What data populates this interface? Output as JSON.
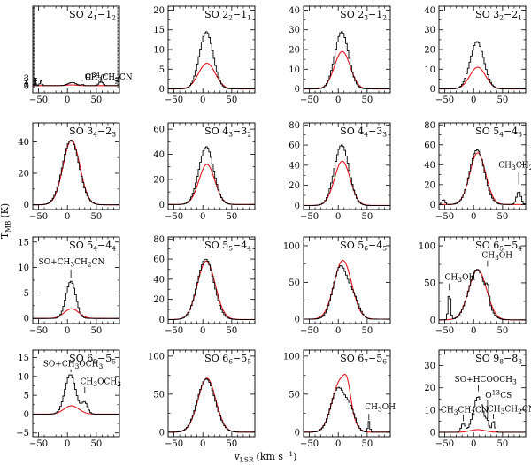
{
  "figure": {
    "ylabel": "T",
    "ylabel_sub": "MB",
    "ylabel_unit": "(K)",
    "xlabel": "v",
    "xlabel_sub": "LSR",
    "xlabel_unit": "(km s",
    "xlabel_unit_sup": "−1",
    "xlabel_unit_end": ")"
  },
  "colors": {
    "observed": "#000000",
    "model": "#e8141e"
  },
  "chart_data": [
    {
      "type": "line",
      "title": "SO 2₁−1₂",
      "title_main": "SO 2",
      "title_sub1": "1",
      "title_dash": "−1",
      "title_sub2": "2",
      "xlim": [
        -60,
        90
      ],
      "ylim": [
        -3,
        33
      ],
      "xticks": [
        -50,
        0,
        50
      ],
      "yticks": [
        0,
        1,
        2,
        3
      ],
      "ytick_labels": [
        "0",
        "1",
        "2",
        "3"
      ],
      "observed": {
        "base": 0,
        "components": [
          [
            8,
            16,
            1.3
          ],
          [
            -46,
            4,
            1.9
          ],
          [
            -56,
            3,
            3.0
          ],
          [
            58,
            8,
            1.7
          ],
          [
            26,
            4,
            0.5
          ]
        ]
      },
      "model": {
        "base": 0,
        "components": [
          [
            7,
            22,
            0.3
          ]
        ]
      },
      "annotations": [
        {
          "text": "CH₃CH₂CN",
          "main": "CH",
          "s1": "3",
          "m2": "CH",
          "s2": "2",
          "m3": "CN",
          "xlab": 30,
          "ylab": 2.55,
          "xline": 58,
          "y0": 2.4,
          "y1": 2.05
        },
        {
          "text": "H₂C³⁴S",
          "main": "H",
          "s1": "2",
          "m2": "C",
          "sup": "34",
          "m3": "S",
          "xlab": 30,
          "ylab": 2.2,
          "xline": 26,
          "y0": 2.05,
          "y1": 1.85
        }
      ]
    },
    {
      "type": "line",
      "title": "SO 2₂−1₁",
      "title_main": "SO 2",
      "title_sub1": "2",
      "title_dash": "−1",
      "title_sub2": "1",
      "xlim": [
        -60,
        90
      ],
      "ylim": [
        -1,
        21
      ],
      "xticks": [
        -50,
        0,
        50
      ],
      "yticks": [
        0,
        5,
        10,
        15,
        20
      ],
      "ytick_labels": [
        "0",
        "5",
        "10",
        "15",
        "20"
      ],
      "observed": {
        "base": 0,
        "components": [
          [
            6,
            28,
            14.5
          ]
        ]
      },
      "model": {
        "base": 0,
        "components": [
          [
            7,
            34,
            6.5
          ]
        ]
      },
      "annotations": []
    },
    {
      "type": "line",
      "title": "SO 2₃−1₂",
      "title_main": "SO 2",
      "title_sub1": "3",
      "title_dash": "−1",
      "title_sub2": "2",
      "xlim": [
        -60,
        90
      ],
      "ylim": [
        -2,
        42
      ],
      "xticks": [
        -50,
        0,
        50
      ],
      "yticks": [
        0,
        10,
        20,
        30,
        40
      ],
      "ytick_labels": [
        "0",
        "10",
        "20",
        "30",
        "40"
      ],
      "observed": {
        "base": 0,
        "components": [
          [
            6,
            28,
            29
          ]
        ]
      },
      "model": {
        "base": 0,
        "components": [
          [
            7,
            32,
            19
          ]
        ]
      },
      "annotations": []
    },
    {
      "type": "line",
      "title": "SO 3₂−2₁",
      "title_main": "SO 3",
      "title_sub1": "2",
      "title_dash": "−2",
      "title_sub2": "1",
      "xlim": [
        -60,
        90
      ],
      "ylim": [
        -2,
        42
      ],
      "xticks": [
        -50,
        0,
        50
      ],
      "yticks": [
        0,
        10,
        20,
        30,
        40
      ],
      "ytick_labels": [
        "0",
        "10",
        "20",
        "30",
        "40"
      ],
      "observed": {
        "base": 0,
        "components": [
          [
            6,
            28,
            24
          ]
        ]
      },
      "model": {
        "base": 0,
        "components": [
          [
            7,
            32,
            11
          ]
        ]
      },
      "annotations": []
    },
    {
      "type": "line",
      "title": "SO 3₄−2₃",
      "title_main": "SO 3",
      "title_sub1": "4",
      "title_dash": "−2",
      "title_sub2": "3",
      "xlim": [
        -60,
        90
      ],
      "ylim": [
        -3,
        52
      ],
      "xticks": [
        -50,
        0,
        50
      ],
      "yticks": [
        0,
        20,
        40
      ],
      "ytick_labels": [
        "0",
        "20",
        "40"
      ],
      "observed": {
        "base": 0,
        "components": [
          [
            6,
            34,
            41
          ]
        ]
      },
      "model": {
        "base": 0,
        "components": [
          [
            7,
            34,
            41
          ]
        ]
      },
      "annotations": []
    },
    {
      "type": "line",
      "title": "SO 4₃−3₂",
      "title_main": "SO 4",
      "title_sub1": "3",
      "title_dash": "−3",
      "title_sub2": "2",
      "xlim": [
        -60,
        90
      ],
      "ylim": [
        -4,
        65
      ],
      "xticks": [
        -50,
        0,
        50
      ],
      "yticks": [
        0,
        20,
        40,
        60
      ],
      "ytick_labels": [
        "0",
        "20",
        "40",
        "60"
      ],
      "observed": {
        "base": 0,
        "components": [
          [
            6,
            30,
            46
          ]
        ]
      },
      "model": {
        "base": 0,
        "components": [
          [
            7,
            32,
            32
          ]
        ]
      },
      "annotations": []
    },
    {
      "type": "line",
      "title": "SO 4₄−3₃",
      "title_main": "SO 4",
      "title_sub1": "4",
      "title_dash": "−3",
      "title_sub2": "3",
      "xlim": [
        -60,
        90
      ],
      "ylim": [
        -4,
        82
      ],
      "xticks": [
        -50,
        0,
        50
      ],
      "yticks": [
        0,
        20,
        40,
        60,
        80
      ],
      "ytick_labels": [
        "0",
        "20",
        "40",
        "60",
        "80"
      ],
      "observed": {
        "base": 0,
        "components": [
          [
            6,
            30,
            60
          ]
        ]
      },
      "model": {
        "base": 0,
        "components": [
          [
            7,
            32,
            44
          ]
        ]
      },
      "annotations": []
    },
    {
      "type": "line",
      "title": "SO 5₄−4₃",
      "title_main": "SO 5",
      "title_sub1": "4",
      "title_dash": "−4",
      "title_sub2": "3",
      "xlim": [
        -60,
        90
      ],
      "ylim": [
        -5,
        82
      ],
      "xticks": [
        -50,
        0,
        50
      ],
      "yticks": [
        0,
        20,
        40,
        60,
        80
      ],
      "ytick_labels": [
        "0",
        "20",
        "40",
        "60",
        "80"
      ],
      "observed": {
        "base": 0,
        "components": [
          [
            6,
            30,
            55
          ],
          [
            78,
            9,
            13
          ],
          [
            -52,
            6,
            5
          ]
        ]
      },
      "model": {
        "base": 0,
        "components": [
          [
            7,
            32,
            52
          ]
        ]
      },
      "annotations": [
        {
          "text": "CH₃CH₂CN",
          "main": "CH",
          "s1": "3",
          "m2": "CH",
          "s2": "2",
          "m3": "CN",
          "xlab": 43,
          "ylab": 37,
          "xline": 78,
          "y0": 32,
          "y1": 20
        }
      ]
    },
    {
      "type": "line",
      "title": "SO 5₄−4₄",
      "title_main": "SO 5",
      "title_sub1": "4",
      "title_dash": "−4",
      "title_sub2": "4",
      "xlim": [
        -60,
        90
      ],
      "ylim": [
        -1,
        16
      ],
      "xticks": [
        -50,
        0,
        50
      ],
      "yticks": [
        0,
        5,
        10,
        15
      ],
      "ytick_labels": [
        "0",
        "5",
        "10",
        "15"
      ],
      "observed": {
        "base": 0,
        "components": [
          [
            6,
            20,
            7.3
          ]
        ]
      },
      "model": {
        "base": 0,
        "components": [
          [
            7,
            30,
            1.9
          ]
        ]
      },
      "annotations": [
        {
          "text": "SO+CH₃CH₂CN",
          "main": "SO+CH",
          "s1": "3",
          "m2": "CH",
          "s2": "2",
          "m3": "CN",
          "xlab": -50,
          "ylab": 10.6,
          "xline": 6,
          "y0": 9.6,
          "y1": 8.0
        }
      ]
    },
    {
      "type": "line",
      "title": "SO 5₅−4₄",
      "title_main": "SO 5",
      "title_sub1": "5",
      "title_dash": "−4",
      "title_sub2": "4",
      "xlim": [
        -60,
        90
      ],
      "ylim": [
        -4,
        82
      ],
      "xticks": [
        -50,
        0,
        50
      ],
      "yticks": [
        0,
        20,
        40,
        60,
        80
      ],
      "ytick_labels": [
        "0",
        "20",
        "40",
        "60",
        "80"
      ],
      "observed": {
        "base": 0,
        "components": [
          [
            5,
            34,
            60
          ]
        ]
      },
      "model": {
        "base": 0,
        "components": [
          [
            6,
            36,
            58
          ]
        ]
      },
      "annotations": []
    },
    {
      "type": "line",
      "title": "SO 5₆−4₅",
      "title_main": "SO 5",
      "title_sub1": "6",
      "title_dash": "−4",
      "title_sub2": "5",
      "xlim": [
        -60,
        90
      ],
      "ylim": [
        -6,
        112
      ],
      "xticks": [
        -50,
        0,
        50
      ],
      "yticks": [
        0,
        50,
        100
      ],
      "ytick_labels": [
        "0",
        "50",
        "100"
      ],
      "observed": {
        "base": 0,
        "components": [
          [
            4,
            30,
            72
          ],
          [
            28,
            22,
            22
          ]
        ]
      },
      "model": {
        "base": 0,
        "components": [
          [
            8,
            36,
            80
          ]
        ]
      },
      "annotations": []
    },
    {
      "type": "line",
      "title": "SO 6₅−5₄",
      "title_main": "SO 6",
      "title_sub1": "5",
      "title_dash": "−5",
      "title_sub2": "4",
      "xlim": [
        -60,
        90
      ],
      "ylim": [
        -5,
        112
      ],
      "xticks": [
        -50,
        0,
        50
      ],
      "yticks": [
        0,
        50,
        100
      ],
      "ytick_labels": [
        "0",
        "50",
        "100"
      ],
      "observed": {
        "base": 0,
        "components": [
          [
            6,
            34,
            68
          ],
          [
            -42,
            5,
            36
          ],
          [
            24,
            6,
            18
          ]
        ]
      },
      "model": {
        "base": 0,
        "components": [
          [
            7,
            36,
            68
          ]
        ]
      },
      "annotations": [
        {
          "text": "CH₃OH",
          "main": "CH",
          "s1": "3",
          "m2": "OH",
          "s2": "",
          "m3": "",
          "xlab": -50,
          "ylab": 54,
          "xline": -42,
          "y0": 49,
          "y1": 40
        },
        {
          "text": "CH₃OH",
          "main": "CH",
          "s1": "3",
          "m2": "OH",
          "s2": "",
          "m3": "",
          "xlab": 14,
          "ylab": 84,
          "xline": 24,
          "y0": 80,
          "y1": 72
        }
      ]
    },
    {
      "type": "line",
      "title": "SO 6₅−5₅",
      "title_main": "SO 6",
      "title_sub1": "5",
      "title_dash": "−5",
      "title_sub2": "5",
      "xlim": [
        -60,
        90
      ],
      "ylim": [
        -6,
        17
      ],
      "xticks": [
        -50,
        0,
        50
      ],
      "yticks": [
        -5,
        0,
        5,
        10,
        15
      ],
      "ytick_labels": [
        "−5",
        "0",
        "5",
        "10",
        "15"
      ],
      "observed": {
        "base": 0,
        "components": [
          [
            5,
            22,
            10.5
          ],
          [
            30,
            12,
            3.0
          ]
        ]
      },
      "model": {
        "base": 0,
        "components": [
          [
            7,
            30,
            2.2
          ]
        ]
      },
      "annotations": [
        {
          "text": "SO+CH₃OCH₃",
          "main": "SO+CH",
          "s1": "3",
          "m2": "OCH",
          "s2": "3",
          "m3": "",
          "xlab": -42,
          "ylab": 12.6,
          "xline": 6,
          "y0": 11.9,
          "y1": 11.1
        },
        {
          "text": "CH₃OCH₃",
          "main": "CH",
          "s1": "3",
          "m2": "OCH",
          "s2": "3",
          "m3": "",
          "xlab": 22,
          "ylab": 8.0,
          "xline": 30,
          "y0": 7.2,
          "y1": 5.6
        }
      ]
    },
    {
      "type": "line",
      "title": "SO 6₆−5₅",
      "title_main": "SO 6",
      "title_sub1": "6",
      "title_dash": "−5",
      "title_sub2": "5",
      "xlim": [
        -60,
        90
      ],
      "ylim": [
        -6,
        108
      ],
      "xticks": [
        -50,
        0,
        50
      ],
      "yticks": [
        0,
        50,
        100
      ],
      "ytick_labels": [
        "0",
        "50",
        "100"
      ],
      "observed": {
        "base": 0,
        "components": [
          [
            6,
            36,
            70
          ]
        ]
      },
      "model": {
        "base": 0,
        "components": [
          [
            7,
            36,
            71
          ]
        ]
      },
      "annotations": []
    },
    {
      "type": "line",
      "title": "SO 6₇−5₆",
      "title_main": "SO 6",
      "title_sub1": "7",
      "title_dash": "−5",
      "title_sub2": "6",
      "xlim": [
        -60,
        90
      ],
      "ylim": [
        -6,
        108
      ],
      "xticks": [
        -50,
        0,
        50
      ],
      "yticks": [
        0,
        50,
        100
      ],
      "ytick_labels": [
        "0",
        "50",
        "100"
      ],
      "observed": {
        "base": 0,
        "components": [
          [
            0,
            30,
            58
          ],
          [
            22,
            20,
            22
          ],
          [
            53,
            4,
            14
          ]
        ]
      },
      "model": {
        "base": 0,
        "components": [
          [
            4,
            34,
            68
          ],
          [
            16,
            14,
            22
          ]
        ]
      },
      "annotations": [
        {
          "text": "CH₃OH",
          "main": "CH",
          "s1": "3",
          "m2": "OH",
          "s2": "",
          "m3": "",
          "xlab": 46,
          "ylab": 30,
          "xline": 53,
          "y0": 24,
          "y1": 16
        }
      ]
    },
    {
      "type": "line",
      "title": "SO 9₈−8₈",
      "title_main": "SO 9",
      "title_sub1": "8",
      "title_dash": "−8",
      "title_sub2": "8",
      "xlim": [
        -60,
        90
      ],
      "ylim": [
        -2,
        37
      ],
      "xticks": [
        -50,
        0,
        50
      ],
      "yticks": [
        0,
        10,
        20,
        30
      ],
      "ytick_labels": [
        "0",
        "10",
        "20",
        "30"
      ],
      "observed": {
        "base": 0,
        "components": [
          [
            8,
            20,
            16
          ],
          [
            -18,
            8,
            4
          ],
          [
            34,
            6,
            5
          ],
          [
            24,
            6,
            3
          ]
        ]
      },
      "model": {
        "base": 0,
        "components": [
          [
            7,
            30,
            1.2
          ]
        ]
      },
      "annotations": [
        {
          "text": "SO+HCOOCH₃",
          "main": "SO+HCOOCH",
          "s1": "3",
          "m2": "",
          "s2": "",
          "m3": "",
          "xlab": -33,
          "ylab": 22.6,
          "xline": 8,
          "y0": 21.3,
          "y1": 18.5
        },
        {
          "text": "O¹³CS",
          "main": "O",
          "sup": "13",
          "m2": "CS",
          "s1": "",
          "s2": "",
          "m3": "",
          "xlab": 20,
          "ylab": 15.5,
          "xline": 24,
          "y0": 14.3,
          "y1": 6
        },
        {
          "text": "CH₃CH₂CN",
          "main": "CH",
          "s1": "3",
          "m2": "CH",
          "s2": "2",
          "m3": "CN",
          "xlab": -57,
          "ylab": 9.0,
          "xline": -18,
          "y0": 8.0,
          "y1": 5.0
        },
        {
          "text": "CH₃CH₂CN",
          "main": "CH",
          "s1": "3",
          "m2": "CH",
          "s2": "2",
          "m3": "CN",
          "xlab": 24,
          "ylab": 9.3,
          "xline": 34,
          "y0": 8.3,
          "y1": 6.0
        }
      ]
    }
  ]
}
